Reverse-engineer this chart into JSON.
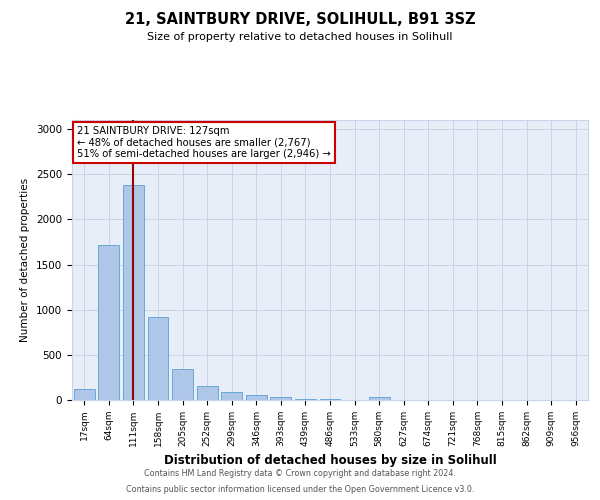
{
  "title": "21, SAINTBURY DRIVE, SOLIHULL, B91 3SZ",
  "subtitle": "Size of property relative to detached houses in Solihull",
  "xlabel": "Distribution of detached houses by size in Solihull",
  "ylabel": "Number of detached properties",
  "bin_labels": [
    "17sqm",
    "64sqm",
    "111sqm",
    "158sqm",
    "205sqm",
    "252sqm",
    "299sqm",
    "346sqm",
    "393sqm",
    "439sqm",
    "486sqm",
    "533sqm",
    "580sqm",
    "627sqm",
    "674sqm",
    "721sqm",
    "768sqm",
    "815sqm",
    "862sqm",
    "909sqm",
    "956sqm"
  ],
  "bar_values": [
    120,
    1720,
    2380,
    920,
    340,
    160,
    90,
    50,
    30,
    10,
    10,
    5,
    30,
    0,
    0,
    0,
    0,
    0,
    0,
    0,
    0
  ],
  "bar_color": "#aec6e8",
  "bar_edge_color": "#5a9fd4",
  "property_bin_index": 2,
  "vline_color": "#990000",
  "annotation_title": "21 SAINTBURY DRIVE: 127sqm",
  "annotation_line1": "← 48% of detached houses are smaller (2,767)",
  "annotation_line2": "51% of semi-detached houses are larger (2,946) →",
  "annotation_box_color": "#ffffff",
  "annotation_box_edge": "#cc0000",
  "ylim": [
    0,
    3100
  ],
  "yticks": [
    0,
    500,
    1000,
    1500,
    2000,
    2500,
    3000
  ],
  "grid_color": "#c8d4e8",
  "bg_color": "#e8eef8",
  "footer_line1": "Contains HM Land Registry data © Crown copyright and database right 2024.",
  "footer_line2": "Contains public sector information licensed under the Open Government Licence v3.0."
}
